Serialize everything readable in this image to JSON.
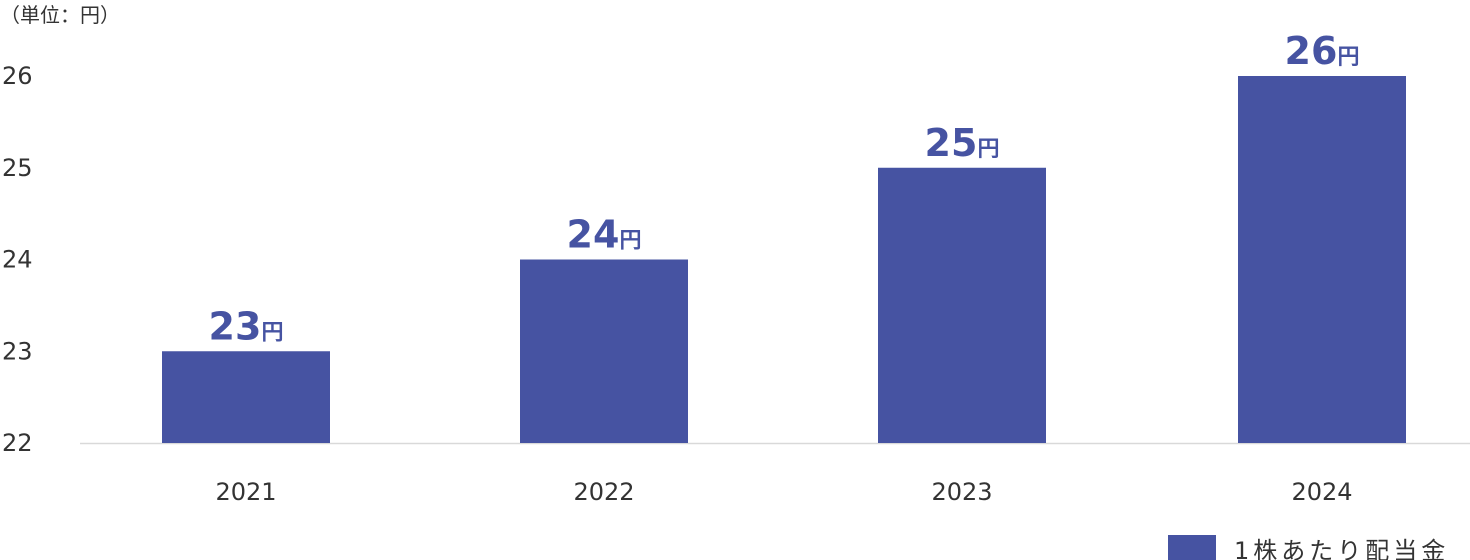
{
  "chart_data": {
    "type": "bar",
    "unit_label": "（単位：円）",
    "categories": [
      "2021",
      "2022",
      "2023",
      "2024"
    ],
    "series": [
      {
        "name": "1株あたり配当金",
        "values": [
          23,
          24,
          25,
          26
        ],
        "color": "#4653a2"
      }
    ],
    "value_suffix": "円",
    "ylim": [
      22,
      26
    ],
    "yticks": [
      22,
      23,
      24,
      25,
      26
    ],
    "grid": false,
    "legend_position": "bottom-right",
    "axis_color": "#d9d9d9"
  }
}
